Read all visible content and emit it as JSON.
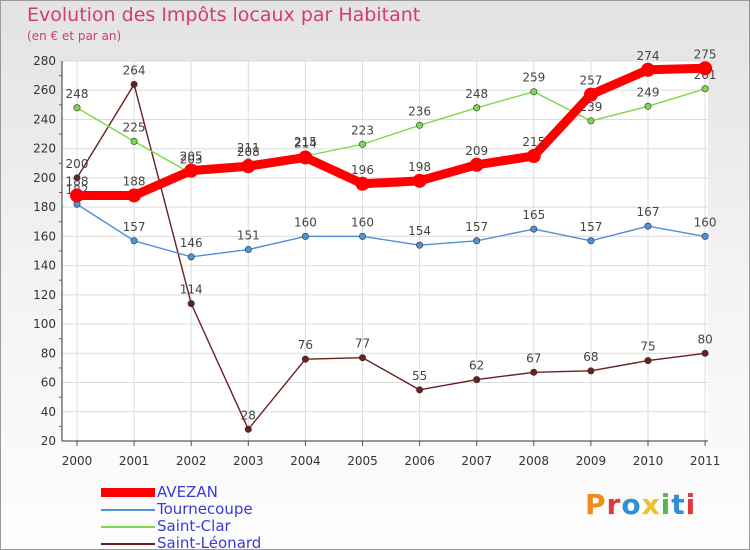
{
  "title": "Evolution des Impôts locaux par Habitant",
  "subtitle": "(en € et par an)",
  "brand": "Proxiti",
  "brand_colors": [
    "#f28b1c",
    "#e23a3a",
    "#2f8fd6",
    "#f0c02a",
    "#58b947",
    "#2f8fd6",
    "#e23a3a"
  ],
  "chart_data": {
    "type": "line",
    "x": [
      "2000",
      "2001",
      "2002",
      "2003",
      "2004",
      "2005",
      "2006",
      "2007",
      "2008",
      "2009",
      "2010",
      "2011"
    ],
    "ylim": [
      20,
      280
    ],
    "yticks": [
      20,
      40,
      60,
      80,
      100,
      120,
      140,
      160,
      180,
      200,
      220,
      240,
      260,
      280
    ],
    "grid": true,
    "legend_position": "bottom-left",
    "series": [
      {
        "name": "Saint-Léonard",
        "color": "#6b1f1f",
        "values": [
          200,
          264,
          114,
          28,
          76,
          77,
          55,
          62,
          67,
          68,
          75,
          80
        ]
      },
      {
        "name": "Tournecoupe",
        "color": "#4f92d6",
        "values": [
          182,
          157,
          146,
          151,
          160,
          160,
          154,
          157,
          165,
          157,
          167,
          160
        ]
      },
      {
        "name": "Saint-Clar",
        "color": "#7cd94a",
        "values": [
          248,
          225,
          203,
          211,
          215,
          223,
          236,
          248,
          259,
          239,
          249,
          261
        ]
      },
      {
        "name": "AVEZAN",
        "color": "#ff0000",
        "values": [
          188,
          188,
          205,
          208,
          214,
          196,
          198,
          209,
          215,
          257,
          274,
          275
        ]
      }
    ],
    "legend_order": [
      "AVEZAN",
      "Tournecoupe",
      "Saint-Clar",
      "Saint-Léonard"
    ]
  }
}
